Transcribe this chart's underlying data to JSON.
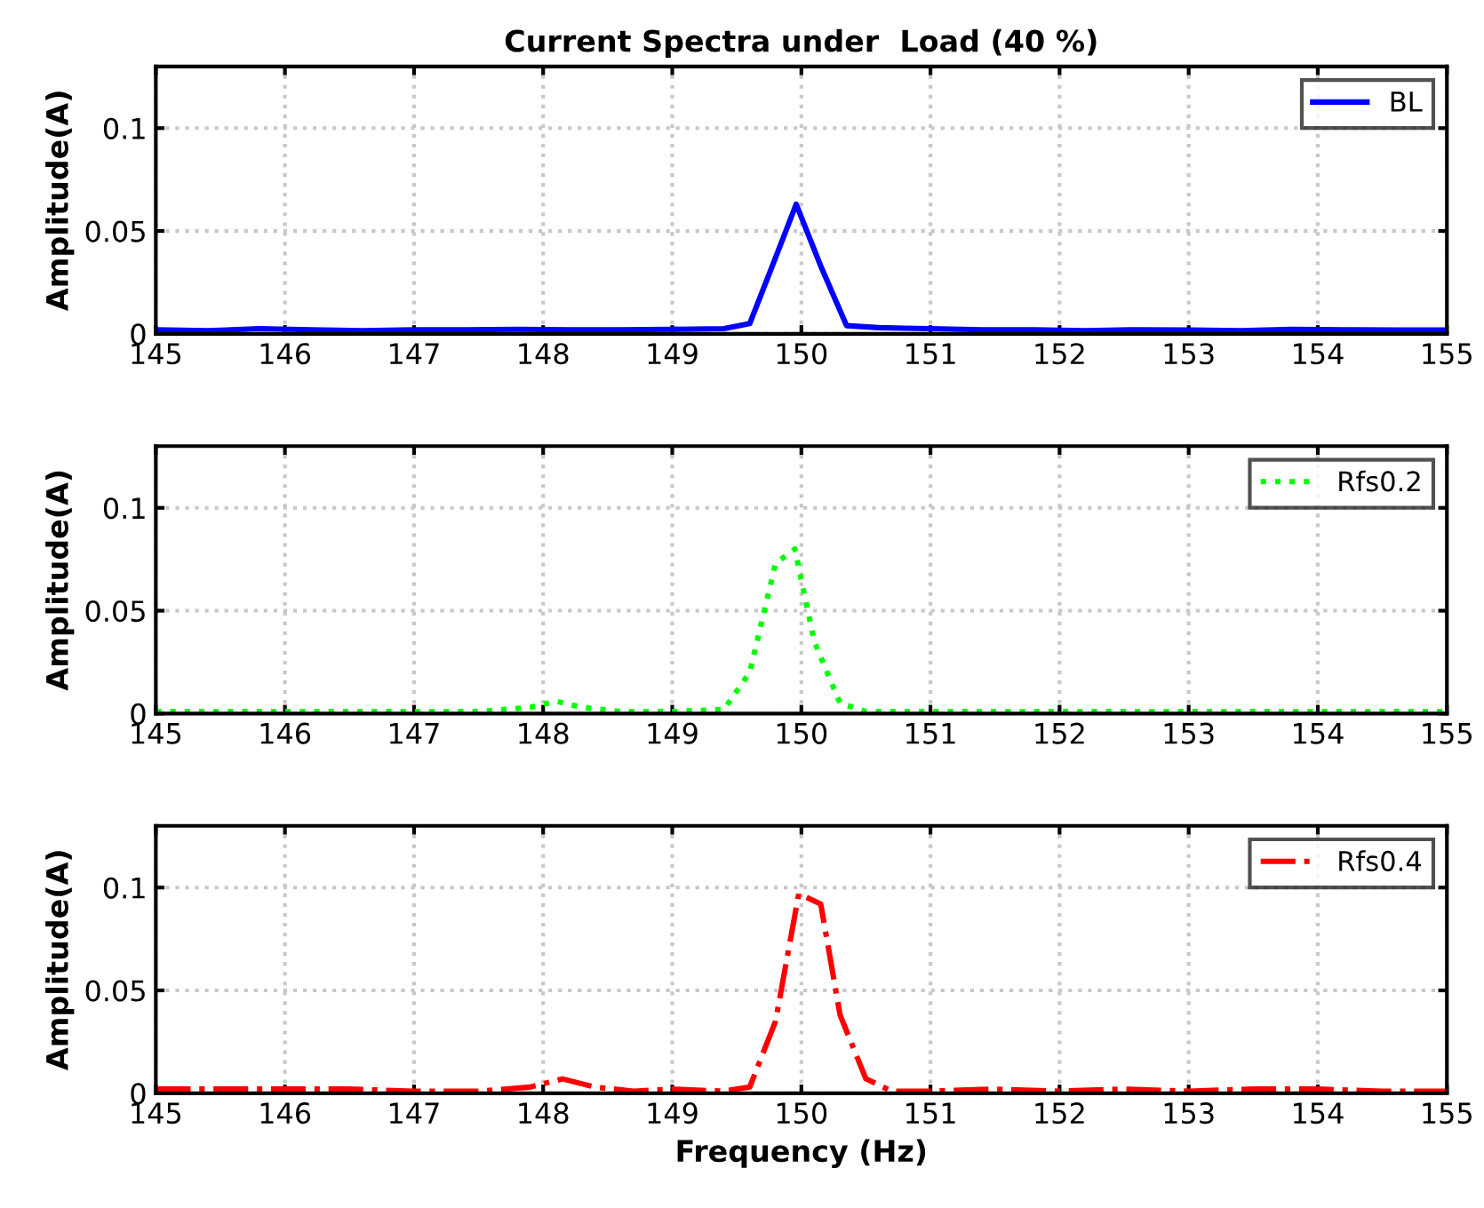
{
  "chart_data": [
    {
      "type": "line",
      "title": "Current Spectra under  Load (40 %)",
      "ylabel": "Amplitude(A)",
      "xlim": [
        145,
        155
      ],
      "ylim": [
        0,
        0.13
      ],
      "xticks": [
        145,
        146,
        147,
        148,
        149,
        150,
        151,
        152,
        153,
        154,
        155
      ],
      "yticks": [
        0,
        0.05,
        0.1
      ],
      "grid": true,
      "legend": "top right",
      "line_style": "solid",
      "series": [
        {
          "name": "BL",
          "color": "#0000ff",
          "x": [
            145,
            145.4,
            145.8,
            146.2,
            146.6,
            147,
            147.4,
            147.8,
            148.2,
            148.6,
            149,
            149.4,
            149.6,
            149.8,
            149.96,
            150.15,
            150.35,
            150.6,
            151,
            151.4,
            151.8,
            152.2,
            152.6,
            153,
            153.4,
            153.8,
            154.2,
            154.6,
            155
          ],
          "values": [
            0.002,
            0.0015,
            0.0025,
            0.002,
            0.0015,
            0.002,
            0.002,
            0.0022,
            0.002,
            0.002,
            0.0022,
            0.0025,
            0.005,
            0.037,
            0.063,
            0.033,
            0.004,
            0.003,
            0.0025,
            0.002,
            0.002,
            0.0015,
            0.002,
            0.0018,
            0.0015,
            0.0022,
            0.002,
            0.0018,
            0.0018
          ]
        }
      ]
    },
    {
      "type": "line",
      "ylabel": "Amplitude(A)",
      "xlim": [
        145,
        155
      ],
      "ylim": [
        0,
        0.13
      ],
      "xticks": [
        145,
        146,
        147,
        148,
        149,
        150,
        151,
        152,
        153,
        154,
        155
      ],
      "yticks": [
        0,
        0.05,
        0.1
      ],
      "grid": true,
      "legend": "top right",
      "line_style": "dotted",
      "series": [
        {
          "name": "Rfs0.2",
          "color": "#00ff00",
          "x": [
            145,
            145.5,
            146,
            146.5,
            147,
            147.5,
            147.9,
            148.1,
            148.3,
            148.6,
            149,
            149.4,
            149.6,
            149.8,
            149.95,
            150.1,
            150.3,
            150.5,
            151,
            151.5,
            152,
            153,
            154,
            155
          ],
          "values": [
            0.001,
            0.001,
            0.001,
            0.001,
            0.001,
            0.001,
            0.003,
            0.006,
            0.003,
            0.001,
            0.001,
            0.002,
            0.02,
            0.073,
            0.08,
            0.035,
            0.005,
            0.001,
            0.001,
            0.001,
            0.001,
            0.001,
            0.001,
            0.001
          ]
        }
      ]
    },
    {
      "type": "line",
      "ylabel": "Amplitude(A)",
      "xlabel": "Frequency (Hz)",
      "xlim": [
        145,
        155
      ],
      "ylim": [
        0,
        0.13
      ],
      "xticks": [
        145,
        146,
        147,
        148,
        149,
        150,
        151,
        152,
        153,
        154,
        155
      ],
      "yticks": [
        0,
        0.05,
        0.1
      ],
      "grid": true,
      "legend": "top right",
      "line_style": "dashdot",
      "series": [
        {
          "name": "Rfs0.4",
          "color": "#ff0000",
          "x": [
            145,
            145.5,
            146,
            146.5,
            147,
            147.5,
            147.9,
            148.15,
            148.4,
            148.7,
            149,
            149.4,
            149.6,
            149.8,
            149.98,
            150.15,
            150.3,
            150.5,
            150.7,
            151,
            151.5,
            152,
            152.5,
            153,
            153.5,
            154,
            154.5,
            155
          ],
          "values": [
            0.002,
            0.002,
            0.002,
            0.002,
            0.001,
            0.001,
            0.003,
            0.007,
            0.003,
            0.001,
            0.002,
            0.001,
            0.003,
            0.035,
            0.097,
            0.092,
            0.038,
            0.007,
            0.001,
            0.001,
            0.002,
            0.001,
            0.002,
            0.001,
            0.002,
            0.002,
            0.001,
            0.001
          ]
        }
      ]
    }
  ]
}
